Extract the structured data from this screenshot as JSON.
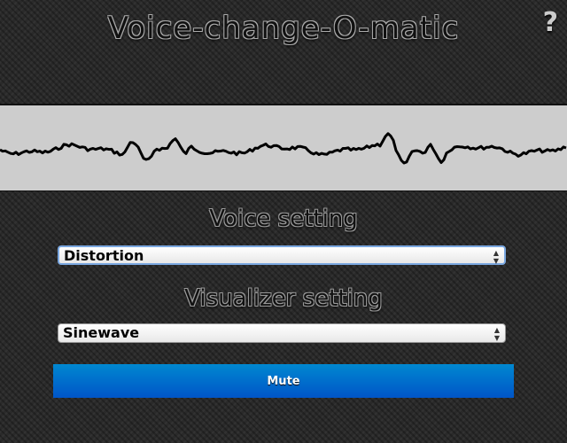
{
  "header": {
    "title": "Voice-change-O-matic",
    "help_label": "?"
  },
  "visualizer": {
    "background": "#cdcdcd",
    "line_color": "#000000"
  },
  "voice": {
    "label": "Voice setting",
    "selected": "Distortion"
  },
  "visual": {
    "label": "Visualizer setting",
    "selected": "Sinewave"
  },
  "mute": {
    "label": "Mute",
    "color": "#0066cc"
  }
}
